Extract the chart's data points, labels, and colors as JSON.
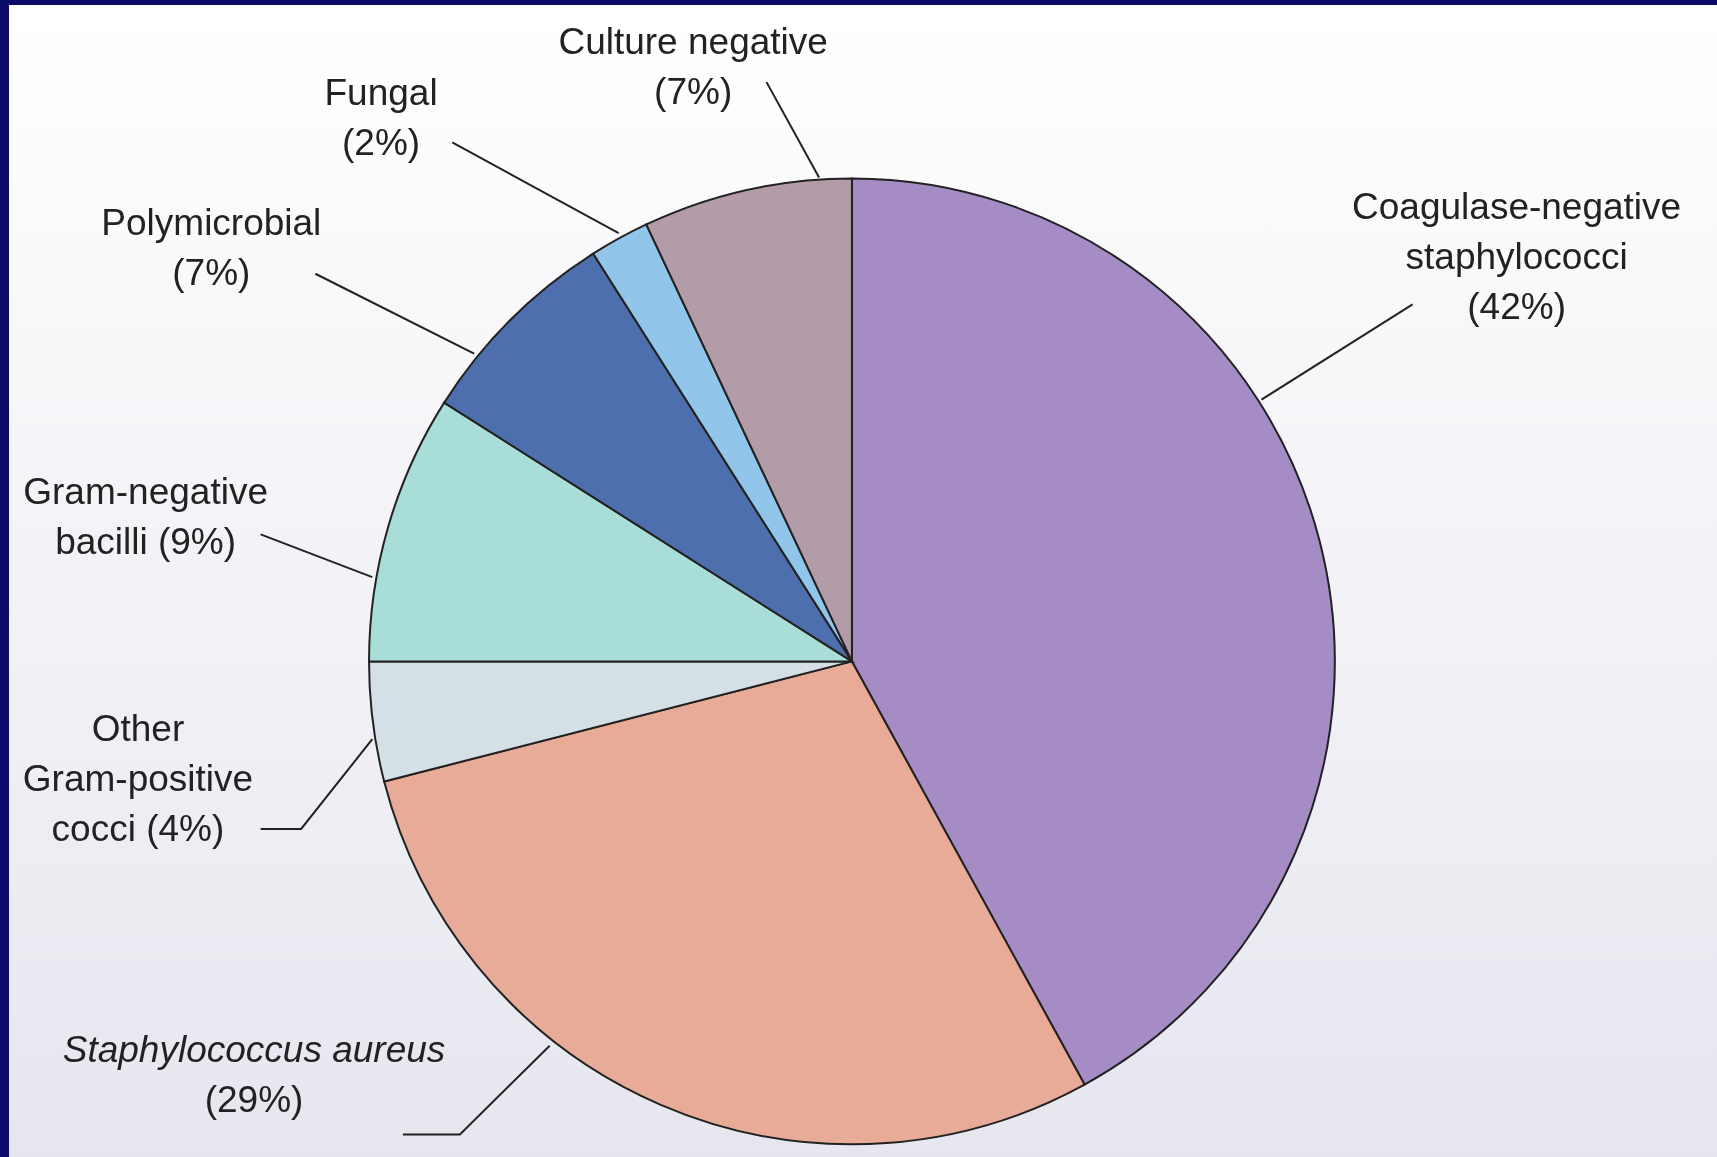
{
  "chart_data": {
    "type": "pie",
    "categories": [
      "Coagulase-negative staphylococci",
      "Staphylococcus aureus",
      "Other Gram-positive cocci",
      "Gram-negative bacilli",
      "Polymicrobial",
      "Fungal",
      "Culture negative"
    ],
    "values": [
      42,
      29,
      4,
      9,
      7,
      2,
      7
    ],
    "value_labels": [
      "(42%)",
      "(29%)",
      "(4%)",
      "(9%)",
      "(7%)",
      "(2%)",
      "(7%)"
    ],
    "colors": [
      "#a68cc4",
      "#e8ab97",
      "#d5e0e6",
      "#a9ddd8",
      "#4d6fad",
      "#92c5ea",
      "#b39ba8"
    ]
  }
}
